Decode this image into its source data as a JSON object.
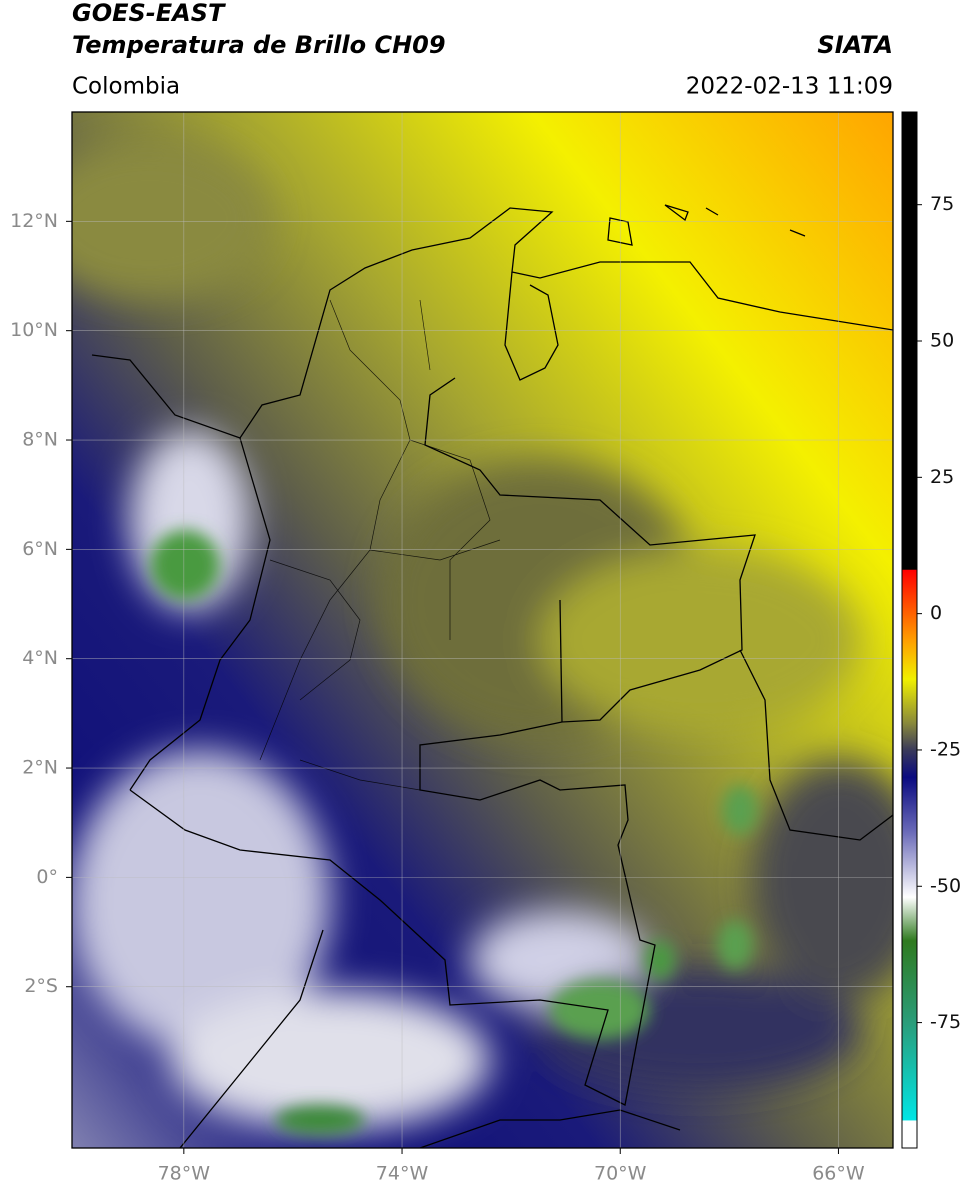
{
  "header": {
    "title_line1": "GOES-EAST",
    "title_line2": "Temperatura de Brillo CH09",
    "region": "Colombia",
    "source": "SIATA",
    "timestamp": "2022-02-13 11:09"
  },
  "map": {
    "lonlim": [
      -80.05,
      -65.0
    ],
    "latlim": [
      -4.95,
      14.0
    ],
    "lon_ticks": [
      {
        "value": -78,
        "label": "78°W"
      },
      {
        "value": -74,
        "label": "74°W"
      },
      {
        "value": -70,
        "label": "70°W"
      },
      {
        "value": -66,
        "label": "66°W"
      }
    ],
    "lat_ticks": [
      {
        "value": 12,
        "label": "12°N"
      },
      {
        "value": 10,
        "label": "10°N"
      },
      {
        "value": 8,
        "label": "8°N"
      },
      {
        "value": 6,
        "label": "6°N"
      },
      {
        "value": 4,
        "label": "4°N"
      },
      {
        "value": 2,
        "label": "2°N"
      },
      {
        "value": 0,
        "label": "0°"
      },
      {
        "value": -2,
        "label": "2°S"
      }
    ]
  },
  "colorbar": {
    "lim": [
      -98,
      92
    ],
    "ticks": [
      75,
      50,
      25,
      0,
      -25,
      -50,
      -75
    ],
    "colormap": [
      {
        "value": -98,
        "color": "#ffffff"
      },
      {
        "value": -93,
        "color": "#ffffff"
      },
      {
        "value": -92.9,
        "color": "#00e5e5"
      },
      {
        "value": -75,
        "color": "#2a9d7a"
      },
      {
        "value": -60,
        "color": "#2f7a1f"
      },
      {
        "value": -52,
        "color": "#ffffff"
      },
      {
        "value": -40,
        "color": "#6a6ab8"
      },
      {
        "value": -30,
        "color": "#0a0a80"
      },
      {
        "value": -25,
        "color": "#3a3a5a"
      },
      {
        "value": -20,
        "color": "#8a8a3a"
      },
      {
        "value": -12,
        "color": "#f0f000"
      },
      {
        "value": -5,
        "color": "#ffa000"
      },
      {
        "value": 8,
        "color": "#ff0000"
      },
      {
        "value": 8.1,
        "color": "#000000"
      },
      {
        "value": 92,
        "color": "#000000"
      }
    ]
  }
}
